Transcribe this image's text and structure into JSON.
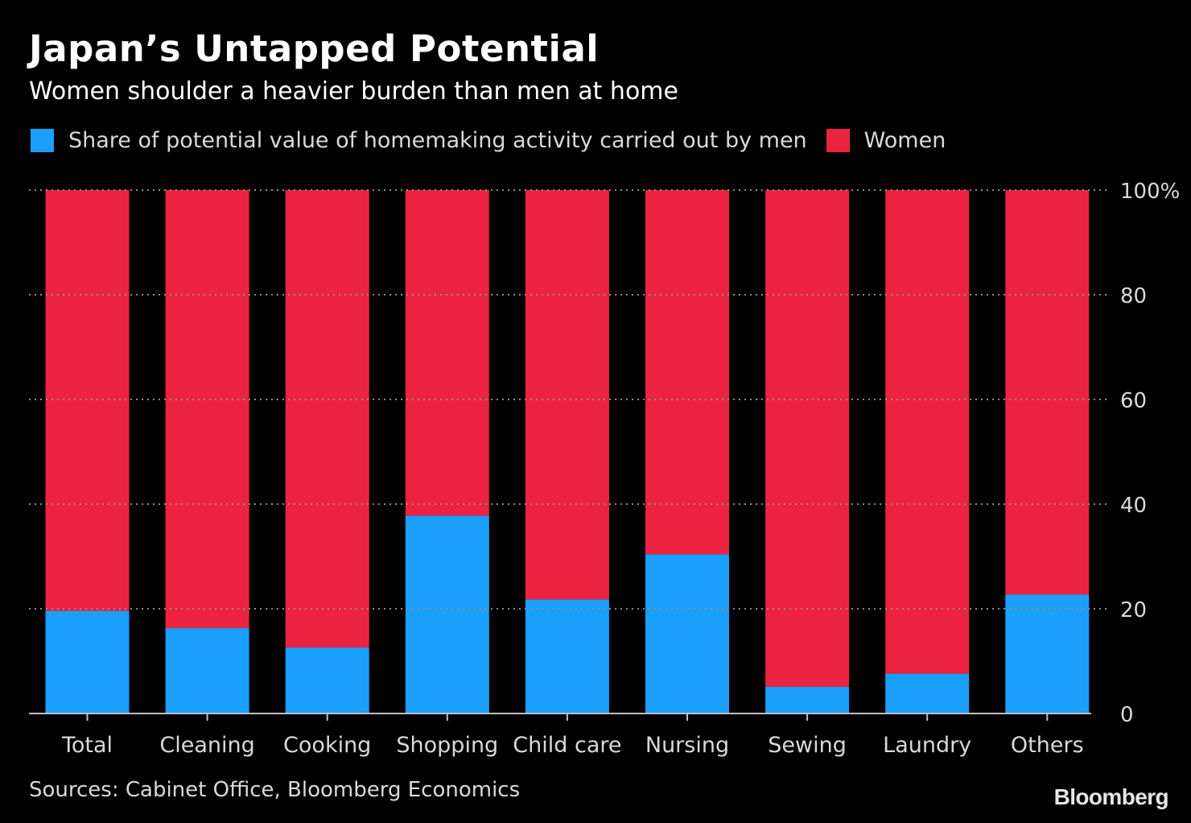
{
  "chart_data": {
    "type": "bar",
    "stacked": true,
    "title": "Japan’s Untapped Potential",
    "subtitle": "Women shoulder a heavier burden than men at home",
    "categories": [
      "Total",
      "Cleaning",
      "Cooking",
      "Shopping",
      "Child care",
      "Nursing",
      "Sewing",
      "Laundry",
      "Others"
    ],
    "series": [
      {
        "name": "Share of potential value of homemaking activity carried out by men",
        "color": "#1a9ffc",
        "values": [
          19.6,
          16.3,
          12.6,
          37.8,
          21.8,
          30.4,
          5.1,
          7.6,
          22.7
        ]
      },
      {
        "name": "Women",
        "color": "#ec2340",
        "values": [
          80.4,
          83.7,
          87.4,
          62.2,
          78.2,
          69.6,
          94.9,
          92.4,
          77.3
        ]
      }
    ],
    "ylim": [
      0,
      100
    ],
    "yticks": [
      0,
      20,
      40,
      60,
      80,
      100
    ],
    "ytick_labels": [
      "0",
      "20",
      "40",
      "60",
      "80",
      "100%"
    ],
    "yaxis_position": "right",
    "grid": true,
    "legend_position": "top-left"
  },
  "footer": {
    "source": "Sources: Cabinet Office, Bloomberg Economics",
    "brand": "Bloomberg"
  }
}
